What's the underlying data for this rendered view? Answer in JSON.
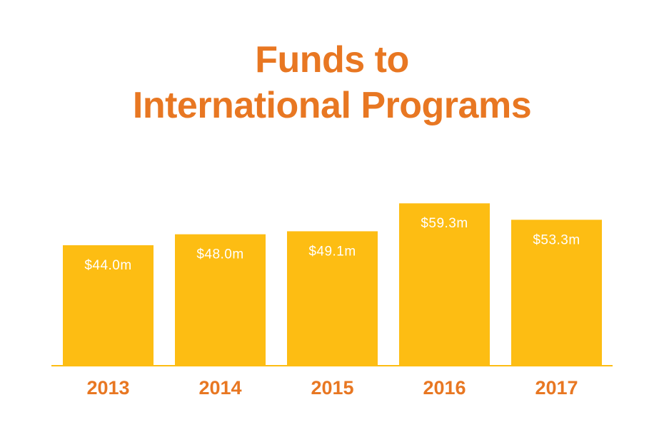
{
  "chart_data": {
    "type": "bar",
    "title_lines": [
      "Funds to",
      "International Programs"
    ],
    "categories": [
      "2013",
      "2014",
      "2015",
      "2016",
      "2017"
    ],
    "values": [
      44.0,
      48.0,
      49.1,
      59.3,
      53.3
    ],
    "data_labels": [
      "$44.0m",
      "$48.0m",
      "$49.1m",
      "$59.3m",
      "$53.3m"
    ],
    "xlabel": "",
    "ylabel": "",
    "ylim": [
      0,
      65
    ],
    "grid": false,
    "legend": "none"
  },
  "colors": {
    "bar": "#FDBD13",
    "title": "#E87722",
    "axis": "#FDBD13",
    "label": "#E87722",
    "value_text": "#FFFFFF"
  }
}
